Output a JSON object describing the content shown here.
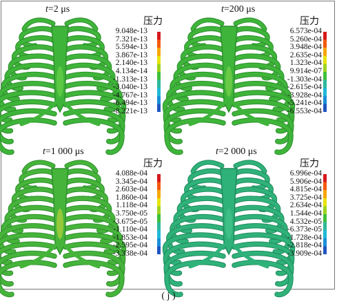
{
  "legend_title": "压力",
  "caption": "( j )",
  "panels": [
    {
      "t_label": "t",
      "t_value": "=2 μs",
      "ticks": [
        "9.048e-13",
        "7.321e-13",
        "5.594e-13",
        "3.867e-13",
        "2.140e-13",
        "4.134e-14",
        "-1.313e-13",
        "-3.040e-13",
        "-4.767e-13",
        "-6.494e-13",
        "-8.221e-13"
      ],
      "body_color": "#3fb43a",
      "shade_color": "#2c8f2c",
      "hilite_color": "#6ad24a"
    },
    {
      "t_label": "t",
      "t_value": "=200 μs",
      "ticks": [
        "6.573e-04",
        "5.260e-04",
        "3.948e-04",
        "2.635e-04",
        "1.323e-04",
        "9.914e-07",
        "-1.303e-04",
        "-2.615e-04",
        "-3.928e-04",
        "-5.241e-04",
        "-6.553e-04"
      ],
      "body_color": "#3fb43a",
      "shade_color": "#2c8f2c",
      "hilite_color": "#7ad34a"
    },
    {
      "t_label": "t",
      "t_value": "=1 000 μs",
      "ticks": [
        "4.088e-04",
        "3.345e-04",
        "2.603e-04",
        "1.860e-04",
        "1.118e-04",
        "3.750e-05",
        "-3.675e-05",
        "-1.110e-04",
        "-1.853e-04",
        "-2.595e-04",
        "-3.338e-04"
      ],
      "body_color": "#46b43a",
      "shade_color": "#2f8f2e",
      "hilite_color": "#b4d23c"
    },
    {
      "t_label": "t",
      "t_value": "=2 000 μs",
      "ticks": [
        "6.996e-04",
        "5.906e-04",
        "4.815e-04",
        "3.725e-04",
        "2.634e-04",
        "1.544e-04",
        "4.532e-05",
        "-6.373e-05",
        "-1.728e-04",
        "-2.818e-04",
        "-3.909e-04"
      ],
      "body_color": "#2fb27a",
      "shade_color": "#1f8a5c",
      "hilite_color": "#44c48c"
    }
  ],
  "colorbar_colors": [
    "#d7191c",
    "#f45a0f",
    "#f6a70a",
    "#e8e40e",
    "#9fd320",
    "#3fbf3a",
    "#2fb89a",
    "#20b8d8",
    "#1a8fd8",
    "#1f55c0"
  ]
}
